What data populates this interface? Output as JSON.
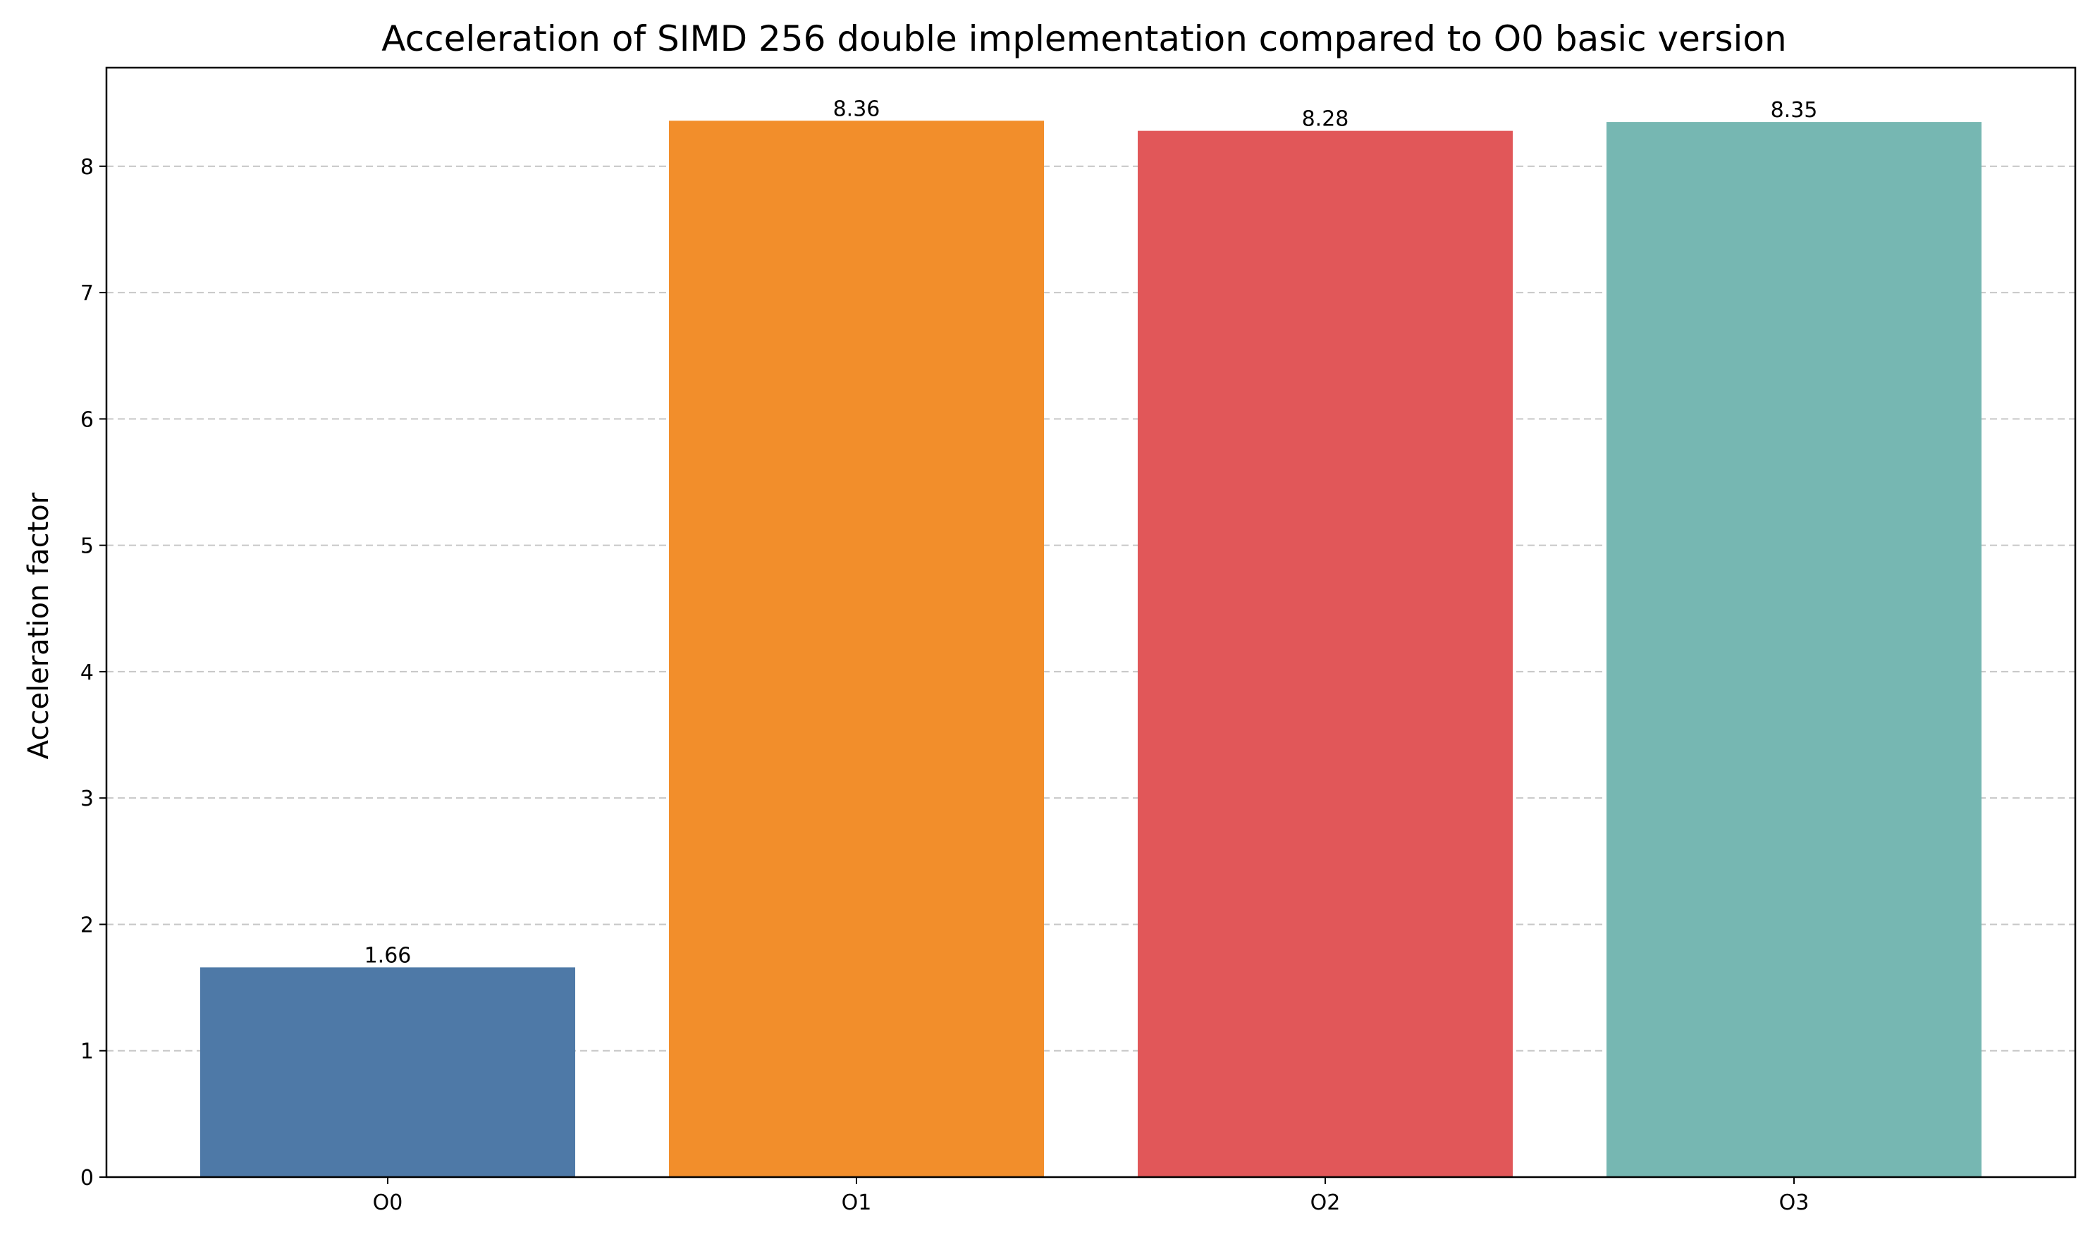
{
  "chart_data": {
    "type": "bar",
    "title": "Acceleration of SIMD 256 double implementation compared to O0 basic version",
    "xlabel": "",
    "ylabel": "Acceleration factor",
    "categories": [
      "O0",
      "O1",
      "O2",
      "O3"
    ],
    "values": [
      1.66,
      8.36,
      8.28,
      8.35
    ],
    "value_labels": [
      "1.66",
      "8.36",
      "8.28",
      "8.35"
    ],
    "colors": [
      "#4e79a7",
      "#f28e2b",
      "#e15759",
      "#76b7b2"
    ],
    "ylim": [
      0,
      8.78
    ],
    "yticks": [
      0,
      1,
      2,
      3,
      4,
      5,
      6,
      7,
      8
    ],
    "grid": "y-dashed",
    "legend": "none"
  }
}
